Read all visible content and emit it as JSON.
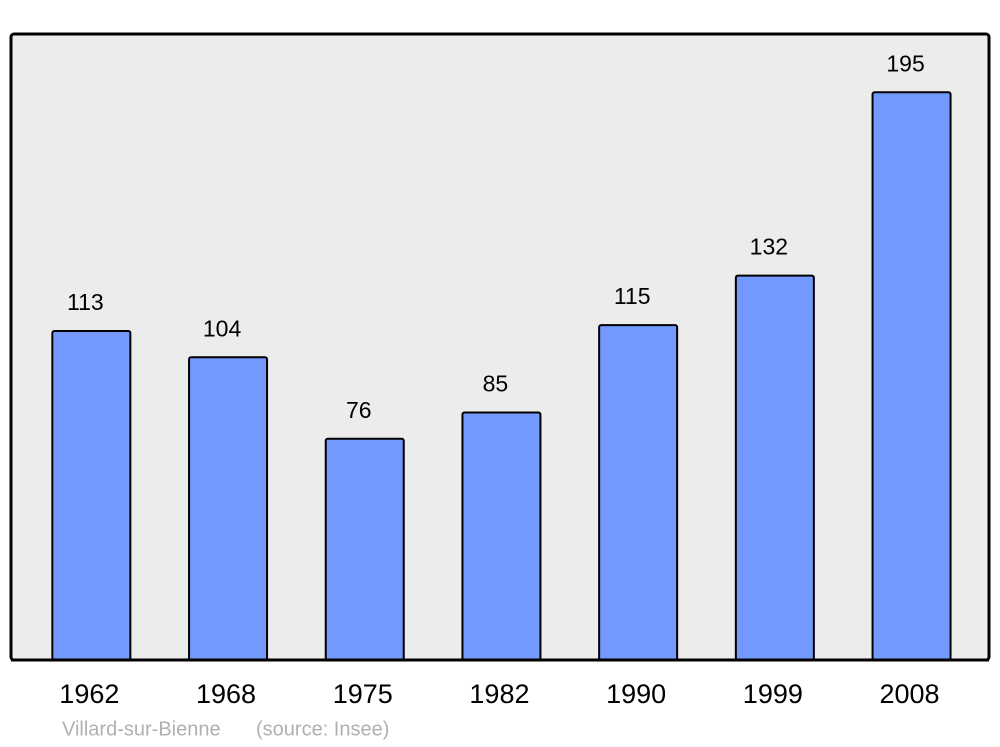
{
  "chart_data": {
    "type": "bar",
    "title": "Villard-sur-Bienne",
    "source": "(source: Insee)",
    "categories": [
      "1962",
      "1968",
      "1975",
      "1982",
      "1990",
      "1999",
      "2008"
    ],
    "values": [
      113,
      104,
      76,
      85,
      115,
      132,
      195
    ],
    "color": "#7399ff",
    "ylim": [
      0,
      215
    ]
  }
}
